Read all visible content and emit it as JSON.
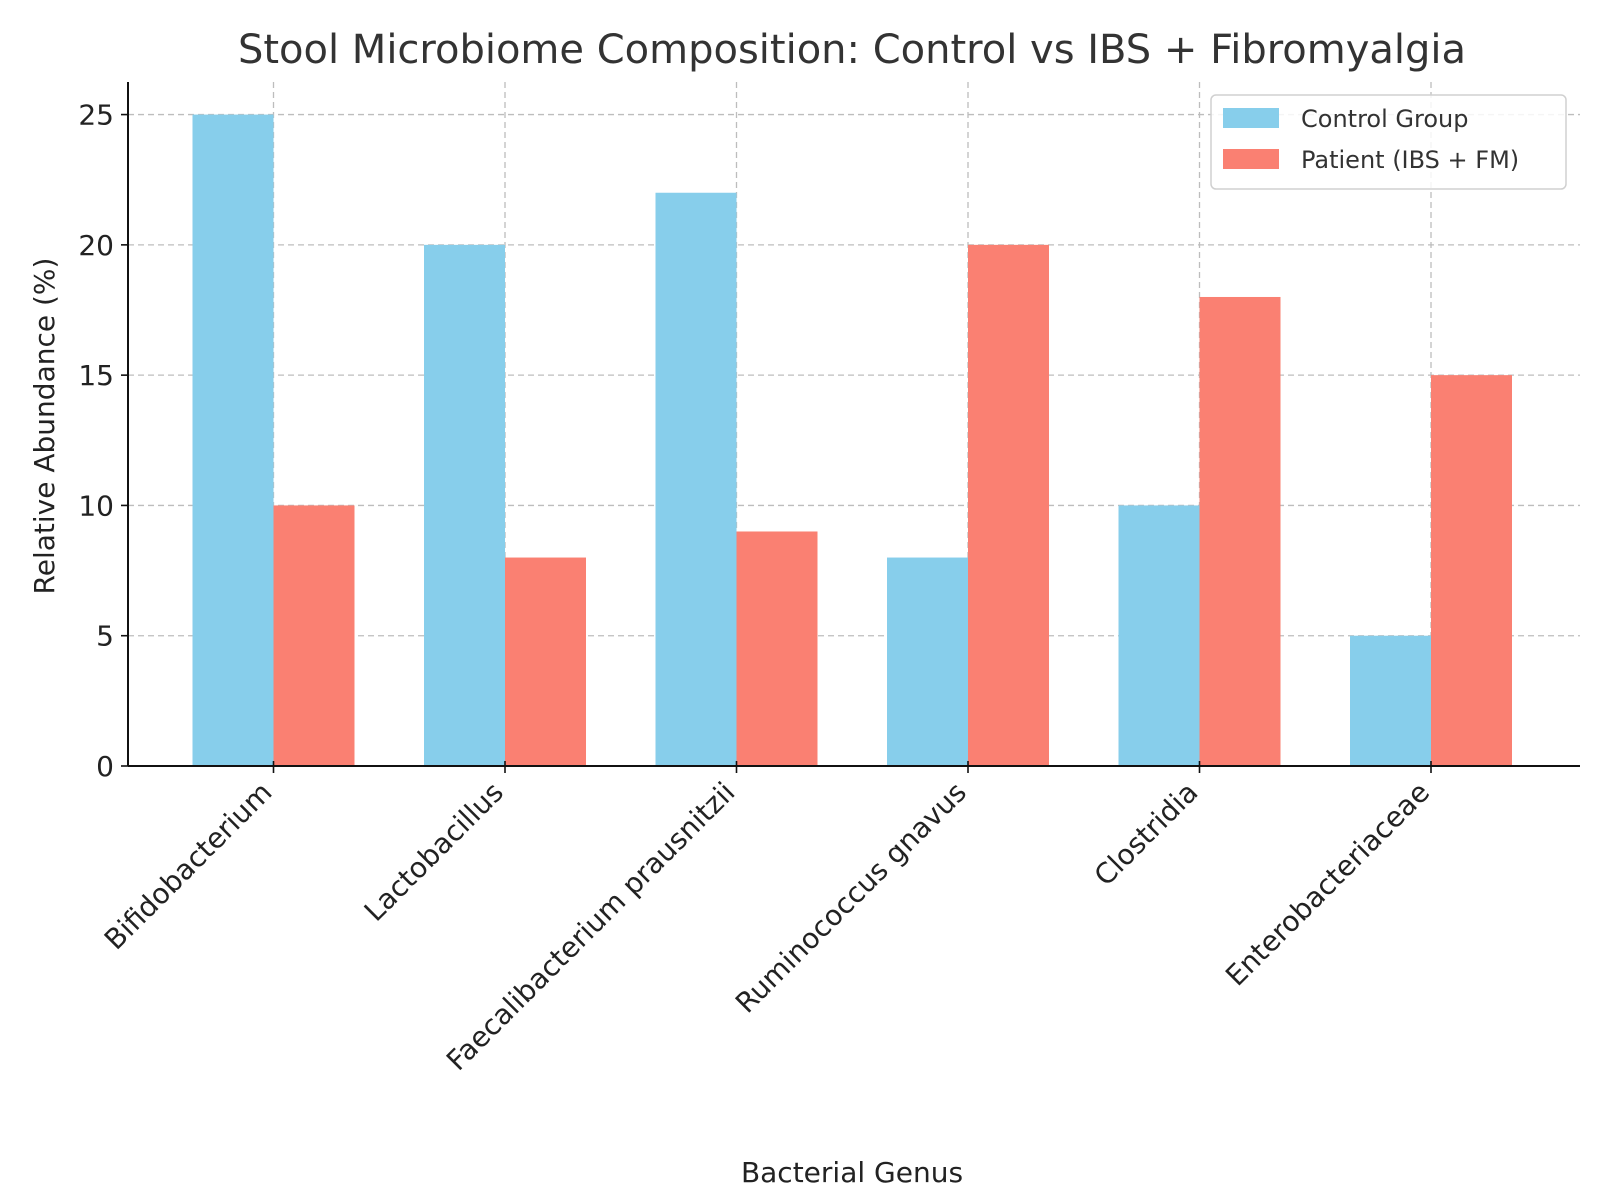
{
  "chart_data": {
    "type": "bar",
    "title": "Stool Microbiome Composition: Control vs IBS + Fibromyalgia",
    "xlabel": "Bacterial Genus",
    "ylabel": "Relative Abundance (%)",
    "categories": [
      "Bifidobacterium",
      "Lactobacillus",
      "Faecalibacterium prausnitzii",
      "Ruminococcus gnavus",
      "Clostridia",
      "Enterobacteriaceae"
    ],
    "series": [
      {
        "name": "Control Group",
        "values": [
          25,
          20,
          22,
          8,
          10,
          5
        ],
        "color": "#87CEEB"
      },
      {
        "name": "Patient (IBS + FM)",
        "values": [
          10,
          8,
          9,
          20,
          18,
          15
        ],
        "color": "#FA8072"
      }
    ],
    "yticks": [
      0,
      5,
      10,
      15,
      20,
      25
    ],
    "ylim": [
      0,
      26.25
    ],
    "grid": true,
    "legend_position": "top-right"
  }
}
